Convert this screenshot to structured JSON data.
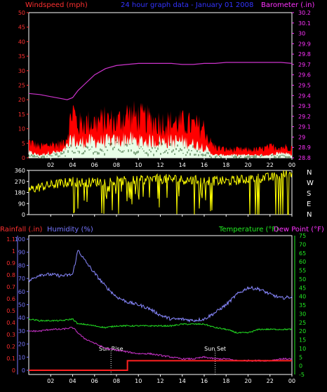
{
  "title": "24 hour graph data - January 01 2008",
  "colors": {
    "background": "#000000",
    "frame": "#ffffff",
    "wind_gust": "#ff0000",
    "wind_avg": "#e8ffe8",
    "barometer": "#cc33cc",
    "direction": "#ffff00",
    "rainfall": "#ff2020",
    "humidity": "#8888ff",
    "temperature": "#22dd22",
    "dewpoint": "#cc33cc",
    "axis_left_red": "#ff3030",
    "axis_right_magenta": "#ff33ff",
    "axis_left_blue": "#7777ff",
    "axis_right_green": "#22ee22",
    "title_blue": "#3333ff",
    "grid": "#ffffff"
  },
  "x_ticks": [
    "02",
    "04",
    "06",
    "08",
    "10",
    "12",
    "14",
    "16",
    "18",
    "20",
    "22",
    "00"
  ],
  "chart_data": [
    {
      "type": "area",
      "panel": "wind",
      "ylabel": "Windspeed (mph)",
      "y2label": "Barometer (.in)",
      "ylim": [
        0,
        50
      ],
      "y_ticks": [
        0,
        5,
        10,
        15,
        20,
        25,
        30,
        35,
        40,
        45,
        50
      ],
      "y2lim": [
        28.8,
        30.2
      ],
      "y2_ticks": [
        "28.8",
        "28.9",
        "29",
        "29.1",
        "29.2",
        "29.3",
        "29.4",
        "29.5",
        "29.6",
        "29.7",
        "29.8",
        "29.9",
        "30",
        "30.1",
        "30.2"
      ],
      "x_hours": [
        0,
        1,
        2,
        3,
        3.5,
        4,
        4.5,
        5,
        6,
        7,
        8,
        9,
        10,
        11,
        12,
        13,
        14,
        15,
        16,
        16.5,
        17,
        18,
        19,
        20,
        21,
        22,
        23,
        24
      ],
      "series": [
        {
          "name": "Wind gust",
          "values": [
            6,
            4,
            5,
            5,
            8,
            18,
            12,
            13,
            13,
            14,
            13,
            16,
            15,
            14,
            13,
            13,
            13,
            12,
            11,
            6,
            4,
            3,
            3,
            3,
            3,
            4,
            4,
            4
          ]
        },
        {
          "name": "Wind average",
          "values": [
            2,
            1,
            2,
            2,
            4,
            7,
            5,
            6,
            6,
            6,
            6,
            7,
            6,
            6,
            6,
            6,
            6,
            5,
            4,
            2,
            1,
            1,
            1,
            1,
            1,
            1,
            2,
            1
          ]
        },
        {
          "name": "Barometer",
          "values": [
            29.42,
            29.41,
            29.39,
            29.37,
            29.36,
            29.38,
            29.45,
            29.5,
            29.6,
            29.66,
            29.69,
            29.7,
            29.71,
            29.71,
            29.71,
            29.71,
            29.7,
            29.7,
            29.71,
            29.71,
            29.71,
            29.72,
            29.72,
            29.72,
            29.72,
            29.72,
            29.72,
            29.71
          ]
        }
      ]
    },
    {
      "type": "line",
      "panel": "direction",
      "ylim": [
        0,
        360
      ],
      "y_ticks": [
        "0",
        "90",
        "180",
        "270",
        "360"
      ],
      "right_labels": [
        "N",
        "W",
        "S",
        "E",
        "N"
      ],
      "x_hours": [
        0,
        1,
        2,
        3,
        4,
        5,
        6,
        7,
        8,
        9,
        10,
        11,
        12,
        13,
        14,
        15,
        16,
        17,
        18,
        19,
        20,
        21,
        22,
        23,
        24
      ],
      "series": [
        {
          "name": "Wind direction",
          "values": [
            200,
            225,
            240,
            255,
            270,
            260,
            265,
            270,
            270,
            275,
            280,
            285,
            290,
            290,
            285,
            280,
            280,
            275,
            270,
            280,
            290,
            300,
            300,
            320,
            340
          ]
        }
      ]
    },
    {
      "type": "line",
      "panel": "temp",
      "y_left_outer_label": "Rainfall (.in)",
      "y_left_inner_label": "Humidity (%)",
      "y_right_label": "Temperature (°F)",
      "y_right_label2": "Dew Point (°F)",
      "rain_ylim": [
        0,
        1.1
      ],
      "rain_ticks": [
        "0",
        "0.1",
        "0.2",
        "0.3",
        "0.4",
        "0.5",
        "0.6",
        "0.7",
        "0.8",
        "0.9",
        "1",
        "1.1"
      ],
      "humidity_ylim": [
        0,
        100
      ],
      "humidity_ticks": [
        "0",
        "10",
        "20",
        "30",
        "40",
        "50",
        "60",
        "70",
        "80",
        "90",
        "100"
      ],
      "temp_ylim": [
        -5,
        75
      ],
      "temp_ticks": [
        "-5",
        "0",
        "5",
        "10",
        "15",
        "20",
        "25",
        "30",
        "35",
        "40",
        "45",
        "50",
        "55",
        "60",
        "65",
        "70",
        "75"
      ],
      "annotations": [
        {
          "text": "Sun Rise",
          "x": 7.5
        },
        {
          "text": "Sun Set",
          "x": 17.0
        }
      ],
      "x_hours": [
        0,
        1,
        2,
        3,
        4,
        4.5,
        5,
        6,
        7,
        8,
        9,
        10,
        11,
        12,
        13,
        14,
        15,
        16,
        17,
        18,
        19,
        20,
        21,
        22,
        23,
        24
      ],
      "series": [
        {
          "name": "Humidity",
          "values": [
            68,
            73,
            73,
            72,
            73,
            92,
            85,
            74,
            64,
            56,
            52,
            50,
            47,
            42,
            39,
            39,
            38,
            39,
            44,
            50,
            58,
            63,
            62,
            58,
            55,
            56
          ]
        },
        {
          "name": "Temperature",
          "values": [
            27,
            26,
            26,
            26,
            27,
            24,
            24,
            23,
            22,
            23,
            23,
            23,
            23,
            23,
            23,
            24,
            24,
            24,
            22,
            21,
            19,
            19,
            21,
            21,
            21,
            21
          ]
        },
        {
          "name": "Dew Point",
          "values": [
            20,
            20,
            21,
            21,
            22,
            19,
            16,
            13,
            10,
            9,
            8,
            7,
            7,
            6,
            5,
            4,
            4,
            5,
            4,
            4,
            3,
            3,
            3,
            3,
            4,
            4
          ]
        },
        {
          "name": "Rainfall",
          "values": [
            0,
            0,
            0,
            0,
            0,
            0,
            0,
            0,
            0,
            0,
            0.08,
            0.08,
            0.08,
            0.08,
            0.08,
            0.08,
            0.08,
            0.08,
            0.08,
            0.08,
            0.08,
            0.08,
            0.08,
            0.08,
            0.08,
            0.08
          ]
        }
      ]
    }
  ]
}
